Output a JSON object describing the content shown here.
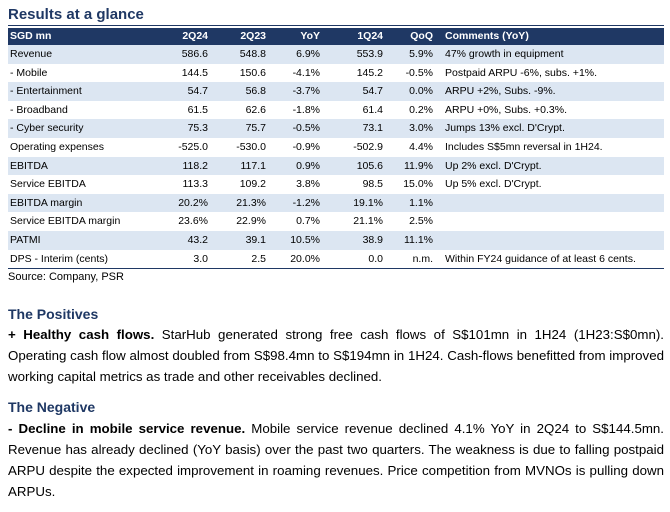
{
  "title": "Results at a glance",
  "table": {
    "headers": [
      "SGD mn",
      "2Q24",
      "2Q23",
      "YoY",
      "1Q24",
      "QoQ",
      "Comments (YoY)"
    ],
    "rows": [
      [
        "Revenue",
        "586.6",
        "548.8",
        "6.9%",
        "553.9",
        "5.9%",
        "47% growth in equipment"
      ],
      [
        " - Mobile",
        "144.5",
        "150.6",
        "-4.1%",
        "145.2",
        "-0.5%",
        "Postpaid ARPU -6%, subs. +1%."
      ],
      [
        " - Entertainment",
        "54.7",
        "56.8",
        "-3.7%",
        "54.7",
        "0.0%",
        "ARPU +2%, Subs. -9%."
      ],
      [
        " - Broadband",
        "61.5",
        "62.6",
        "-1.8%",
        "61.4",
        "0.2%",
        "ARPU +0%, Subs. +0.3%."
      ],
      [
        " - Cyber security",
        "75.3",
        "75.7",
        "-0.5%",
        "73.1",
        "3.0%",
        "Jumps 13% excl. D'Crypt."
      ],
      [
        "Operating expenses",
        "-525.0",
        "-530.0",
        "-0.9%",
        "-502.9",
        "4.4%",
        "Includes S$5mn reversal in 1H24."
      ],
      [
        "EBITDA",
        "118.2",
        "117.1",
        "0.9%",
        "105.6",
        "11.9%",
        "Up 2% excl. D'Crypt."
      ],
      [
        "Service EBITDA",
        "113.3",
        "109.2",
        "3.8%",
        "98.5",
        "15.0%",
        "Up 5% excl. D'Crypt."
      ],
      [
        "EBITDA margin",
        "20.2%",
        "21.3%",
        "-1.2%",
        "19.1%",
        "1.1%",
        ""
      ],
      [
        "Service EBITDA margin",
        "23.6%",
        "22.9%",
        "0.7%",
        "21.1%",
        "2.5%",
        ""
      ],
      [
        "PATMI",
        "43.2",
        "39.1",
        "10.5%",
        "38.9",
        "11.1%",
        ""
      ],
      [
        "DPS - Interim (cents)",
        "3.0",
        "2.5",
        "20.0%",
        "0.0",
        "n.m.",
        "Within FY24 guidance of at least 6 cents."
      ]
    ]
  },
  "source": "Source: Company, PSR",
  "positives": {
    "title": "The Positives",
    "lead": "+ Healthy cash flows.",
    "body": " StarHub generated strong free cash flows of S$101mn in 1H24 (1H23:S$0mn). Operating cash flow almost doubled from S$98.4mn to S$194mn in 1H24. Cash-flows benefitted from improved working capital metrics as trade and other receivables declined."
  },
  "negative": {
    "title": "The Negative",
    "lead": "- Decline in mobile service revenue.",
    "body": " Mobile service revenue declined 4.1% YoY in 2Q24 to S$144.5mn. Revenue has already declined (YoY basis) over the past two quarters.  The weakness is due to falling postpaid ARPU despite the expected improvement in roaming revenues. Price competition from MVNOs is pulling down ARPUs."
  },
  "colors": {
    "header_fill": "#1f3864",
    "shade_fill": "#dce6f2",
    "heading_text": "#1f3864"
  }
}
